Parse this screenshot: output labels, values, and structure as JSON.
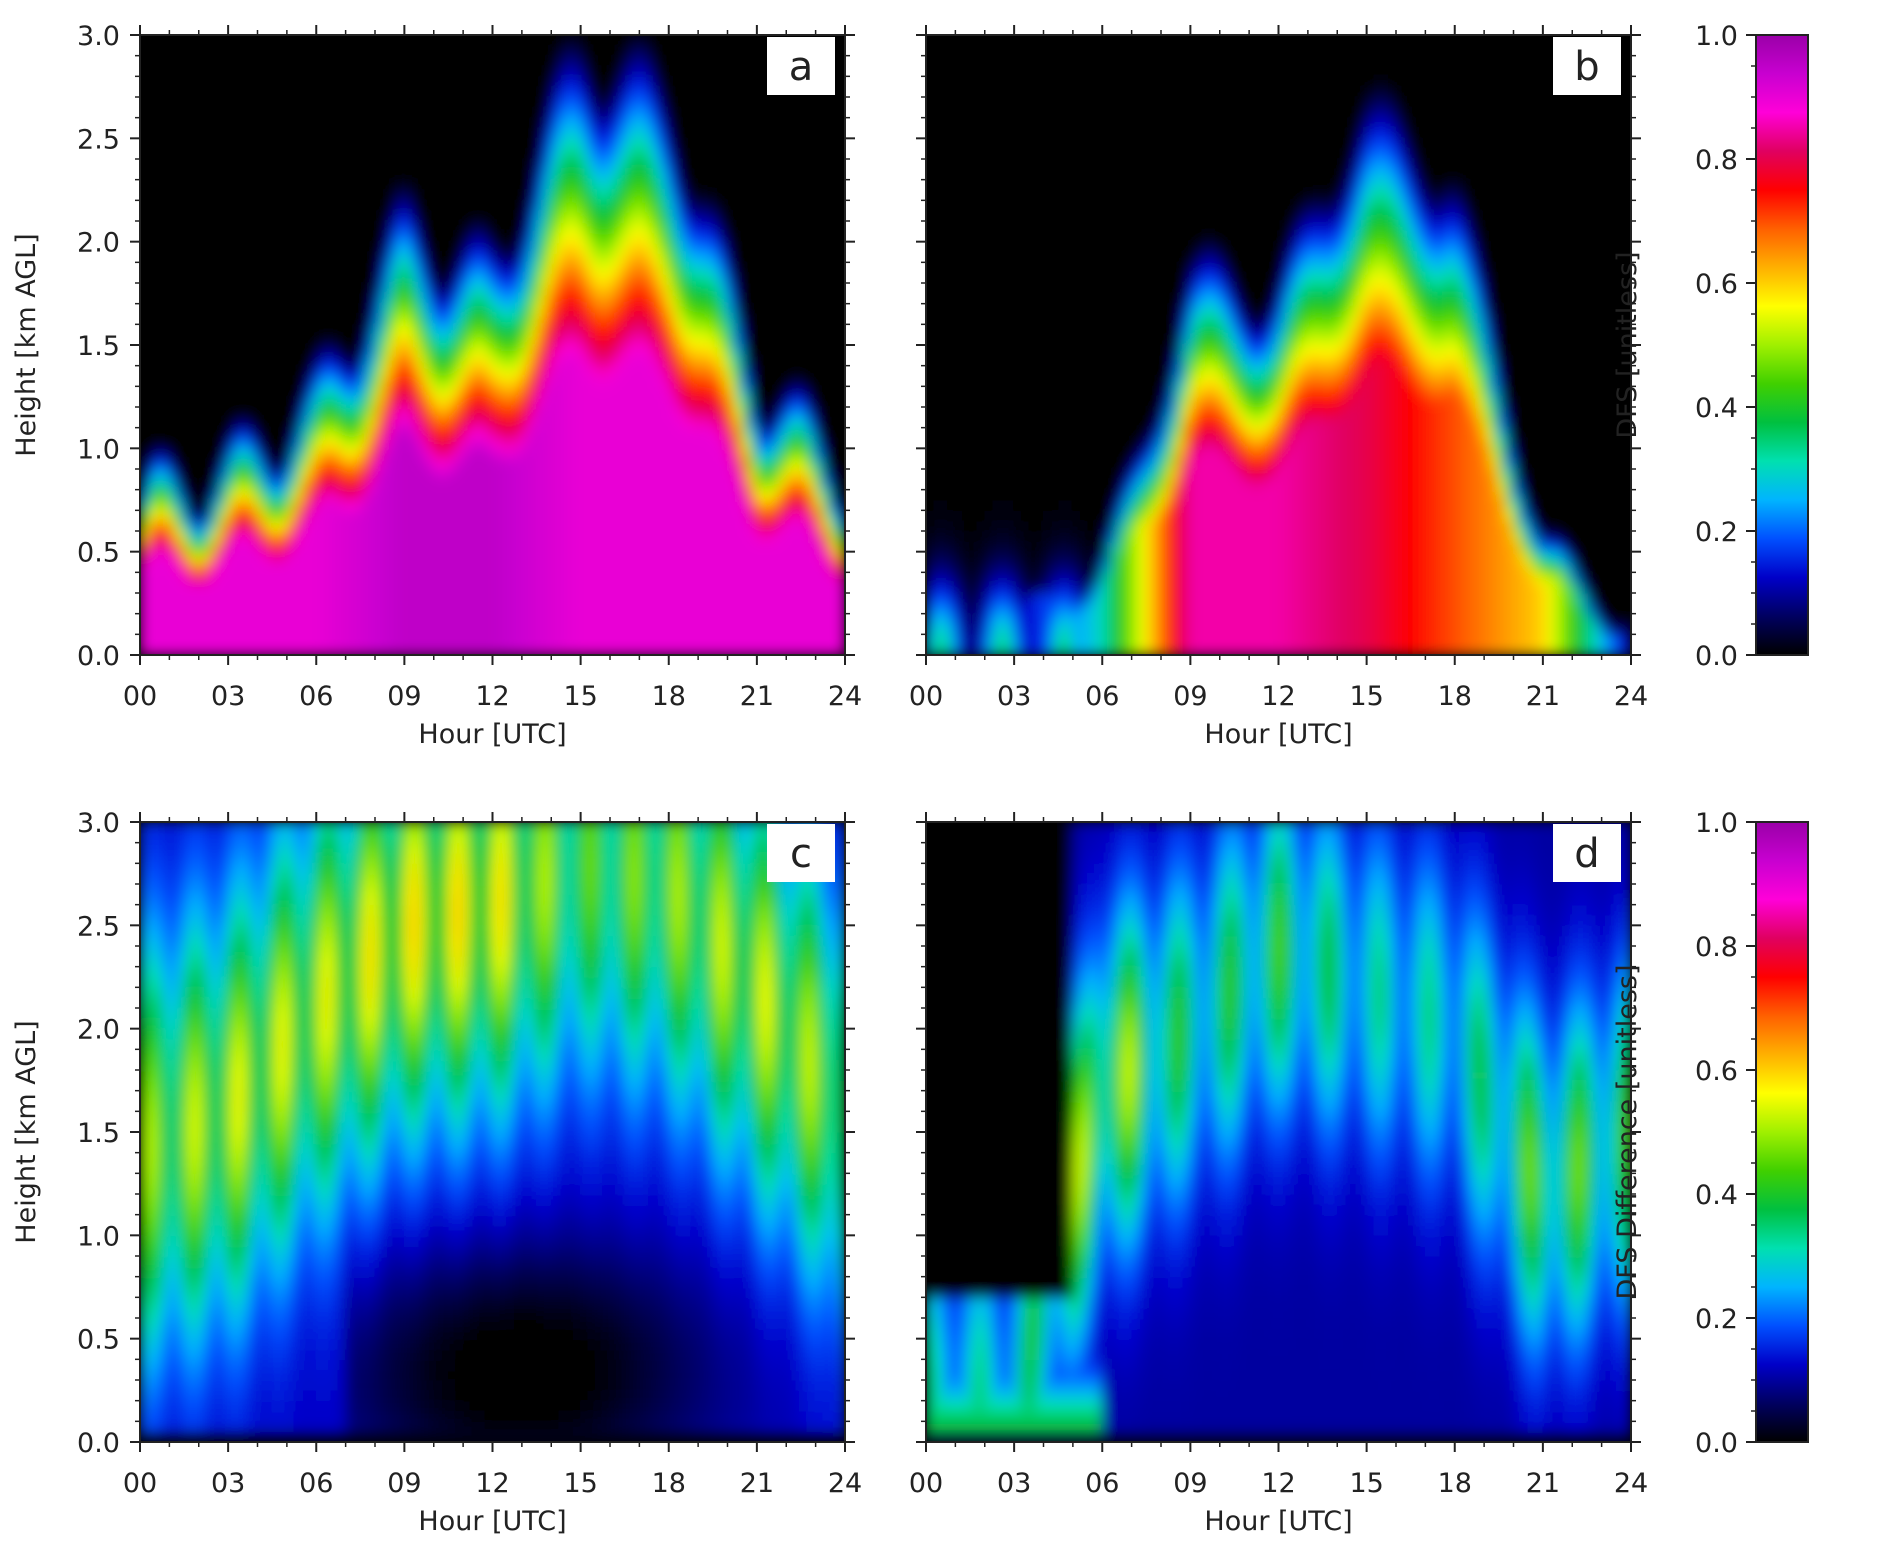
{
  "chart_data": [
    {
      "type": "heatmap",
      "panel_label": "a",
      "xlabel": "Hour [UTC]",
      "ylabel": "Height [km AGL]",
      "xlim": [
        0,
        24
      ],
      "ylim": [
        0.0,
        3.0
      ],
      "xticks": [
        "00",
        "03",
        "06",
        "09",
        "12",
        "15",
        "18",
        "21",
        "24"
      ],
      "yticks": [
        "0.0",
        "0.5",
        "1.0",
        "1.5",
        "2.0",
        "2.5",
        "3.0"
      ],
      "colorbar_label": "DFS [unitless]",
      "description_values": {
        "hours": [
          0,
          3,
          6,
          9,
          12,
          15,
          18,
          21,
          24
        ],
        "top_of_high_dfs_km": [
          0.7,
          0.8,
          1.1,
          1.8,
          1.6,
          2.6,
          2.4,
          1.2,
          0.8
        ],
        "near_surface_dfs": [
          0.9,
          0.9,
          0.9,
          0.95,
          0.95,
          0.9,
          0.9,
          0.9,
          0.9
        ]
      }
    },
    {
      "type": "heatmap",
      "panel_label": "b",
      "xlabel": "Hour [UTC]",
      "ylabel": "",
      "xlim": [
        0,
        24
      ],
      "ylim": [
        0.0,
        3.0
      ],
      "xticks": [
        "00",
        "03",
        "06",
        "09",
        "12",
        "15",
        "18",
        "21",
        "24"
      ],
      "colorbar_label": "DFS [unitless]",
      "description_values": {
        "hours": [
          0,
          3,
          6,
          9,
          12,
          15,
          18,
          21,
          24
        ],
        "top_of_high_dfs_km": [
          0.2,
          0.3,
          0.6,
          1.7,
          1.6,
          2.5,
          2.3,
          0.6,
          0.2
        ],
        "near_surface_dfs": [
          0.05,
          0.1,
          0.3,
          0.85,
          0.85,
          0.8,
          0.7,
          0.6,
          0.1
        ]
      }
    },
    {
      "type": "heatmap",
      "panel_label": "c",
      "xlabel": "Hour [UTC]",
      "ylabel": "Height [km AGL]",
      "xlim": [
        0,
        24
      ],
      "ylim": [
        0.0,
        3.0
      ],
      "xticks": [
        "00",
        "03",
        "06",
        "09",
        "12",
        "15",
        "18",
        "21",
        "24"
      ],
      "yticks": [
        "0.0",
        "0.5",
        "1.0",
        "1.5",
        "2.0",
        "2.5",
        "3.0"
      ],
      "colorbar_label": "DFS Difference [unitless]",
      "description_values": {
        "hours": [
          0,
          3,
          6,
          9,
          12,
          15,
          18,
          21,
          24
        ],
        "peak_height_km": [
          1.4,
          1.6,
          2.1,
          2.5,
          2.6,
          2.8,
          2.7,
          2.2,
          1.6
        ],
        "peak_value": [
          0.4,
          0.45,
          0.45,
          0.5,
          0.5,
          0.35,
          0.4,
          0.45,
          0.4
        ]
      }
    },
    {
      "type": "heatmap",
      "panel_label": "d",
      "xlabel": "Hour [UTC]",
      "ylabel": "",
      "xlim": [
        0,
        24
      ],
      "ylim": [
        0.0,
        3.0
      ],
      "xticks": [
        "00",
        "03",
        "06",
        "09",
        "12",
        "15",
        "18",
        "21",
        "24"
      ],
      "colorbar_label": "DFS Difference [unitless]",
      "description_values": {
        "hours": [
          0,
          3,
          6,
          9,
          12,
          15,
          18,
          21,
          24
        ],
        "peak_height_km": [
          0.2,
          0.2,
          1.7,
          2.0,
          2.4,
          2.2,
          2.0,
          1.2,
          1.5
        ],
        "peak_value": [
          0.25,
          0.25,
          0.5,
          0.3,
          0.35,
          0.25,
          0.25,
          0.4,
          0.35
        ]
      }
    }
  ],
  "colorbars": [
    {
      "label": "DFS [unitless]",
      "ticks": [
        "0.0",
        "0.2",
        "0.4",
        "0.6",
        "0.8",
        "1.0"
      ],
      "range": [
        0.0,
        1.0
      ]
    },
    {
      "label": "DFS Difference [unitless]",
      "ticks": [
        "0.0",
        "0.2",
        "0.4",
        "0.6",
        "0.8",
        "1.0"
      ],
      "range": [
        0.0,
        1.0
      ]
    }
  ],
  "colors": {
    "colormap": [
      "#000000",
      "#000060",
      "#0000c8",
      "#0050ff",
      "#00b4ff",
      "#00e0b0",
      "#00c040",
      "#40d000",
      "#a0f000",
      "#ffff00",
      "#ffb000",
      "#ff6000",
      "#ff0000",
      "#e00060",
      "#ff00d8",
      "#c800d0",
      "#9a00a8"
    ]
  }
}
